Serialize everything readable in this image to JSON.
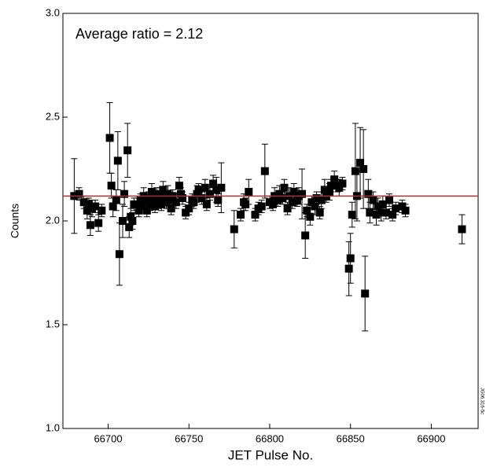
{
  "chart_data": {
    "type": "scatter",
    "annotation": "Average ratio = 2.12",
    "x_label": "JET Pulse No.",
    "y_label": "Counts",
    "figure_code": "JG06.316-5c",
    "reference_line": {
      "value": 2.12,
      "color": "#d62020"
    },
    "xlim": [
      66672,
      66929
    ],
    "xticks": [
      66700,
      66750,
      66800,
      66850,
      66900
    ],
    "ylim": [
      1,
      3
    ],
    "yticks": [
      {
        "value": 1,
        "label": "1.0"
      },
      1.5,
      {
        "value": 2,
        "label": "2.0"
      },
      2.5,
      {
        "value": 3,
        "label": "3.0"
      }
    ],
    "series": [
      {
        "color": "#000000",
        "x": [
          66679,
          66682,
          66685,
          66687,
          66688,
          66689,
          66690,
          66692,
          66694,
          66696,
          66701,
          66702,
          66703,
          66705,
          66706,
          66707,
          66709,
          66710,
          66712,
          66713,
          66714,
          66715,
          66716,
          66718,
          66719,
          66720,
          66721,
          66722,
          66723,
          66724,
          66725,
          66726,
          66727,
          66728,
          66729,
          66730,
          66731,
          66732,
          66733,
          66734,
          66735,
          66736,
          66737,
          66738,
          66739,
          66740,
          66742,
          66744,
          66745,
          66746,
          66748,
          66750,
          66752,
          66753,
          66755,
          66756,
          66758,
          66760,
          66761,
          66763,
          66765,
          66767,
          66768,
          66770,
          66778,
          66782,
          66784,
          66785,
          66787,
          66791,
          66793,
          66795,
          66797,
          66800,
          66802,
          66803,
          66805,
          66806,
          66808,
          66809,
          66811,
          66812,
          66814,
          66815,
          66817,
          66818,
          66820,
          66822,
          66823,
          66825,
          66826,
          66828,
          66829,
          66831,
          66832,
          66834,
          66835,
          66837,
          66838,
          66840,
          66842,
          66843,
          66845,
          66849,
          66850,
          66851,
          66853,
          66854,
          66856,
          66858,
          66859,
          66861,
          66862,
          66864,
          66866,
          66867,
          66869,
          66870,
          66872,
          66874,
          66876,
          66878,
          66882,
          66884,
          66919
        ],
        "values": [
          2.12,
          2.13,
          2.09,
          2.05,
          2.08,
          1.98,
          2.06,
          2.07,
          1.99,
          2.05,
          2.4,
          2.17,
          2.07,
          2.1,
          2.29,
          1.84,
          2.0,
          2.13,
          2.34,
          1.97,
          2.02,
          2.0,
          2.08,
          2.08,
          2.05,
          2.1,
          2.07,
          2.12,
          2.09,
          2.05,
          2.11,
          2.08,
          2.14,
          2.1,
          2.07,
          2.13,
          2.09,
          2.12,
          2.08,
          2.15,
          2.11,
          2.09,
          2.13,
          2.1,
          2.06,
          2.12,
          2.09,
          2.17,
          2.13,
          2.11,
          2.04,
          2.06,
          2.1,
          2.09,
          2.13,
          2.15,
          2.11,
          2.16,
          2.08,
          2.13,
          2.18,
          2.15,
          2.1,
          2.16,
          1.96,
          2.03,
          2.09,
          2.08,
          2.14,
          2.03,
          2.06,
          2.07,
          2.24,
          2.09,
          2.08,
          2.12,
          2.1,
          2.13,
          2.11,
          2.16,
          2.06,
          2.12,
          2.09,
          2.14,
          2.1,
          2.12,
          2.13,
          1.93,
          2.05,
          2.02,
          2.09,
          2.07,
          2.11,
          2.04,
          2.1,
          2.15,
          2.12,
          2.14,
          2.17,
          2.2,
          2.17,
          2.16,
          2.18,
          1.77,
          1.82,
          2.03,
          2.24,
          2.12,
          2.28,
          2.25,
          1.65,
          2.13,
          2.04,
          2.1,
          2.03,
          2.07,
          2.04,
          2.08,
          2.04,
          2.1,
          2.03,
          2.06,
          2.07,
          2.05,
          1.96
        ],
        "errors": [
          0.18,
          0.03,
          0.03,
          0.04,
          0.03,
          0.05,
          0.04,
          0.03,
          0.04,
          0.03,
          0.17,
          0.06,
          0.05,
          0.05,
          0.14,
          0.15,
          0.08,
          0.06,
          0.13,
          0.05,
          0.04,
          0.04,
          0.03,
          0.03,
          0.03,
          0.03,
          0.03,
          0.04,
          0.03,
          0.03,
          0.03,
          0.03,
          0.04,
          0.03,
          0.03,
          0.03,
          0.03,
          0.04,
          0.03,
          0.04,
          0.03,
          0.03,
          0.04,
          0.03,
          0.03,
          0.03,
          0.03,
          0.04,
          0.03,
          0.03,
          0.03,
          0.03,
          0.03,
          0.03,
          0.04,
          0.03,
          0.03,
          0.04,
          0.03,
          0.03,
          0.04,
          0.06,
          0.03,
          0.12,
          0.09,
          0.03,
          0.04,
          0.03,
          0.06,
          0.03,
          0.03,
          0.03,
          0.13,
          0.03,
          0.03,
          0.04,
          0.03,
          0.04,
          0.03,
          0.04,
          0.03,
          0.04,
          0.03,
          0.04,
          0.03,
          0.04,
          0.12,
          0.11,
          0.03,
          0.04,
          0.03,
          0.04,
          0.03,
          0.03,
          0.04,
          0.05,
          0.03,
          0.04,
          0.03,
          0.04,
          0.03,
          0.04,
          0.03,
          0.13,
          0.12,
          0.06,
          0.23,
          0.12,
          0.17,
          0.19,
          0.18,
          0.07,
          0.05,
          0.04,
          0.05,
          0.04,
          0.04,
          0.04,
          0.03,
          0.03,
          0.03,
          0.03,
          0.03,
          0.03,
          0.07
        ]
      }
    ]
  }
}
